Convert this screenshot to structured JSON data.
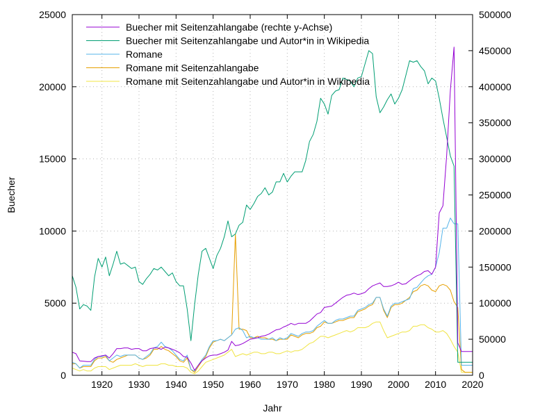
{
  "chart_data": {
    "type": "line",
    "xlabel": "Jahr",
    "ylabel": "Buecher",
    "xlim": [
      1912,
      2020
    ],
    "ylim": [
      0,
      25000
    ],
    "y2lim": [
      0,
      500000
    ],
    "xticks": [
      1920,
      1930,
      1940,
      1950,
      1960,
      1970,
      1980,
      1990,
      2000,
      2010,
      2020
    ],
    "yticks": [
      0,
      5000,
      10000,
      15000,
      20000,
      25000
    ],
    "y2ticks": [
      0,
      50000,
      100000,
      150000,
      200000,
      250000,
      300000,
      350000,
      400000,
      450000,
      500000
    ],
    "grid": true,
    "legend_position": "top-left",
    "x": [
      1912,
      1913,
      1914,
      1915,
      1916,
      1917,
      1918,
      1919,
      1920,
      1921,
      1922,
      1923,
      1924,
      1925,
      1926,
      1927,
      1928,
      1929,
      1930,
      1931,
      1932,
      1933,
      1934,
      1935,
      1936,
      1937,
      1938,
      1939,
      1940,
      1941,
      1942,
      1943,
      1944,
      1945,
      1946,
      1947,
      1948,
      1949,
      1950,
      1951,
      1952,
      1953,
      1954,
      1955,
      1956,
      1957,
      1958,
      1959,
      1960,
      1961,
      1962,
      1963,
      1964,
      1965,
      1966,
      1967,
      1968,
      1969,
      1970,
      1971,
      1972,
      1973,
      1974,
      1975,
      1976,
      1977,
      1978,
      1979,
      1980,
      1981,
      1982,
      1983,
      1984,
      1985,
      1986,
      1987,
      1988,
      1989,
      1990,
      1991,
      1992,
      1993,
      1994,
      1995,
      1996,
      1997,
      1998,
      1999,
      2000,
      2001,
      2002,
      2003,
      2004,
      2005,
      2006,
      2007,
      2008,
      2009,
      2010,
      2011,
      2012,
      2013,
      2014,
      2015,
      2016,
      2017,
      2018,
      2019,
      2020
    ],
    "series": [
      {
        "name": "Buecher mit Seitenzahlangabe (rechte y-Achse)",
        "axis": "right",
        "color": "#9400d3",
        "values": [
          32000,
          30000,
          20000,
          19500,
          19000,
          19000,
          24000,
          26000,
          27000,
          28000,
          24000,
          30000,
          37000,
          37000,
          38000,
          38000,
          36000,
          37000,
          37000,
          34000,
          34000,
          37000,
          38000,
          38000,
          36000,
          39000,
          38000,
          36000,
          34000,
          31000,
          26000,
          25000,
          17000,
          7000,
          14000,
          20000,
          24000,
          27000,
          28000,
          28000,
          30000,
          32000,
          35000,
          47000,
          41000,
          42000,
          44000,
          47000,
          50000,
          51000,
          52000,
          54000,
          55000,
          57000,
          60000,
          63000,
          64000,
          67000,
          69000,
          72000,
          70000,
          72000,
          72000,
          72000,
          75000,
          80000,
          85000,
          87000,
          94000,
          95000,
          96000,
          100000,
          104000,
          108000,
          111000,
          112000,
          114000,
          112000,
          113000,
          115000,
          120000,
          124000,
          126000,
          128000,
          123000,
          123000,
          124000,
          126000,
          129000,
          126000,
          127000,
          131000,
          135000,
          138000,
          140000,
          144000,
          145000,
          140000,
          150000,
          225000,
          235000,
          305000,
          395000,
          455000,
          45000,
          33000,
          33000,
          33000,
          33000
        ]
      },
      {
        "name": "Buecher mit Seitenzahlangabe und Autor*in in Wikipedia",
        "axis": "left",
        "color": "#009e73",
        "values": [
          6900,
          6100,
          4600,
          4900,
          4800,
          4500,
          6800,
          8100,
          7500,
          8200,
          6900,
          7700,
          8600,
          7700,
          7800,
          7600,
          7400,
          7500,
          6500,
          6300,
          6700,
          7000,
          7400,
          7300,
          7500,
          7200,
          6900,
          7100,
          6500,
          6200,
          6200,
          4600,
          2400,
          4900,
          7000,
          8600,
          8800,
          8100,
          7400,
          8300,
          8800,
          9600,
          10700,
          9600,
          9800,
          10400,
          10600,
          11800,
          11500,
          11900,
          12400,
          12600,
          13000,
          12500,
          12700,
          13400,
          13400,
          14000,
          13400,
          13800,
          14100,
          14100,
          14100,
          14900,
          16200,
          16700,
          17600,
          19200,
          18800,
          18100,
          19400,
          19700,
          19800,
          20600,
          20500,
          20400,
          20000,
          20600,
          20700,
          21600,
          22500,
          22300,
          19300,
          18200,
          18600,
          19100,
          19500,
          18800,
          19200,
          19800,
          20800,
          21800,
          21700,
          21800,
          21400,
          21100,
          20200,
          20600,
          20400,
          19200,
          17800,
          16500,
          15200,
          14500,
          900,
          900,
          900,
          900,
          900
        ]
      },
      {
        "name": "Romane",
        "axis": "left",
        "color": "#56b4e9",
        "values": [
          900,
          800,
          500,
          700,
          700,
          700,
          1100,
          1300,
          1300,
          1400,
          1000,
          1200,
          1400,
          1300,
          1400,
          1400,
          1400,
          1400,
          1200,
          1100,
          1300,
          1500,
          1900,
          2000,
          2300,
          2000,
          1900,
          1700,
          1400,
          1100,
          1000,
          1400,
          400,
          300,
          700,
          1100,
          1400,
          2000,
          2400,
          2400,
          2500,
          2400,
          2600,
          2800,
          3200,
          3300,
          3100,
          2600,
          2700,
          2600,
          2600,
          2500,
          2500,
          2500,
          2600,
          2400,
          2600,
          2500,
          2600,
          2900,
          2800,
          2700,
          2900,
          3000,
          3000,
          3100,
          3400,
          3600,
          3800,
          3600,
          3600,
          3800,
          3900,
          3900,
          4000,
          4100,
          4100,
          4500,
          4600,
          4700,
          4900,
          5000,
          5400,
          5400,
          4600,
          4100,
          4800,
          5000,
          5000,
          5100,
          5200,
          5300,
          6000,
          6100,
          6400,
          6700,
          6900,
          7000,
          7500,
          8500,
          10200,
          10200,
          10900,
          10500,
          10500,
          700,
          700,
          700,
          700
        ]
      },
      {
        "name": "Romane mit Seitenzahlangabe",
        "axis": "left",
        "color": "#e69f00",
        "values": [
          800,
          800,
          500,
          600,
          600,
          600,
          1000,
          1200,
          1200,
          1300,
          1000,
          900,
          1100,
          1200,
          1300,
          1400,
          1400,
          1400,
          1200,
          1100,
          1200,
          1400,
          1800,
          1800,
          2000,
          1800,
          1700,
          1500,
          1300,
          1000,
          900,
          1200,
          400,
          200,
          600,
          1000,
          1300,
          1900,
          2300,
          2400,
          2500,
          2400,
          2600,
          2800,
          9800,
          3200,
          3200,
          3100,
          2600,
          2600,
          2700,
          2600,
          2600,
          2500,
          2500,
          2400,
          2500,
          2500,
          2500,
          2800,
          2700,
          2600,
          2800,
          2900,
          2900,
          3000,
          3300,
          3400,
          3700,
          3600,
          3600,
          3700,
          3800,
          3800,
          3900,
          4000,
          4000,
          4400,
          4500,
          4600,
          4800,
          4900,
          5400,
          5400,
          4500,
          4000,
          4700,
          4900,
          4900,
          5000,
          5200,
          5400,
          5800,
          5900,
          6200,
          6300,
          6200,
          5900,
          5800,
          6200,
          6300,
          6200,
          5900,
          5100,
          4700,
          400,
          200,
          200,
          200
        ]
      },
      {
        "name": "Romane mit Seitenzahlangabe und Autor*in in Wikipedia",
        "axis": "left",
        "color": "#f0e442",
        "values": [
          500,
          400,
          300,
          400,
          300,
          300,
          500,
          600,
          600,
          600,
          400,
          500,
          600,
          700,
          700,
          700,
          700,
          800,
          700,
          600,
          700,
          700,
          700,
          700,
          800,
          800,
          700,
          700,
          600,
          600,
          600,
          500,
          200,
          100,
          300,
          600,
          900,
          1000,
          1100,
          1200,
          1300,
          1400,
          1600,
          1800,
          1300,
          1400,
          1500,
          1400,
          1500,
          1600,
          1600,
          1500,
          1500,
          1600,
          1600,
          1500,
          1500,
          1600,
          1700,
          1600,
          1700,
          1700,
          1800,
          2000,
          2200,
          2300,
          2500,
          2700,
          2700,
          2600,
          2700,
          2800,
          2900,
          3000,
          3100,
          3000,
          3100,
          3300,
          3300,
          3300,
          3400,
          3600,
          3700,
          3700,
          3100,
          2600,
          2700,
          2800,
          2900,
          3000,
          3000,
          3100,
          3400,
          3400,
          3500,
          3500,
          3300,
          3200,
          3000,
          3000,
          3100,
          2900,
          2500,
          2000,
          1600,
          200,
          200,
          200,
          200
        ]
      }
    ]
  }
}
